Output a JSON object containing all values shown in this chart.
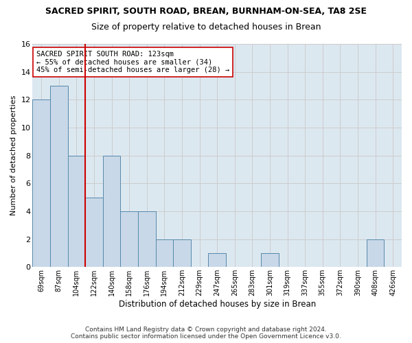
{
  "title": "SACRED SPIRIT, SOUTH ROAD, BREAN, BURNHAM-ON-SEA, TA8 2SE",
  "subtitle": "Size of property relative to detached houses in Brean",
  "xlabel": "Distribution of detached houses by size in Brean",
  "ylabel": "Number of detached properties",
  "categories": [
    "69sqm",
    "87sqm",
    "104sqm",
    "122sqm",
    "140sqm",
    "158sqm",
    "176sqm",
    "194sqm",
    "212sqm",
    "229sqm",
    "247sqm",
    "265sqm",
    "283sqm",
    "301sqm",
    "319sqm",
    "337sqm",
    "355sqm",
    "372sqm",
    "390sqm",
    "408sqm",
    "426sqm"
  ],
  "values": [
    12,
    13,
    8,
    5,
    8,
    4,
    4,
    2,
    2,
    0,
    1,
    0,
    0,
    1,
    0,
    0,
    0,
    0,
    0,
    2,
    0
  ],
  "bar_color": "#c8d8e8",
  "bar_edge_color": "#5588aa",
  "grid_color": "#cccccc",
  "vline_index": 2.5,
  "vline_color": "#cc0000",
  "annotation_text": "SACRED SPIRIT SOUTH ROAD: 123sqm\n← 55% of detached houses are smaller (34)\n45% of semi-detached houses are larger (28) →",
  "annotation_box_color": "#ffffff",
  "annotation_box_edge": "#cc0000",
  "footer1": "Contains HM Land Registry data © Crown copyright and database right 2024.",
  "footer2": "Contains public sector information licensed under the Open Government Licence v3.0.",
  "ylim": [
    0,
    16
  ],
  "yticks": [
    0,
    2,
    4,
    6,
    8,
    10,
    12,
    14,
    16
  ],
  "background_color": "#dce8f0",
  "title_fontsize": 9,
  "subtitle_fontsize": 9
}
